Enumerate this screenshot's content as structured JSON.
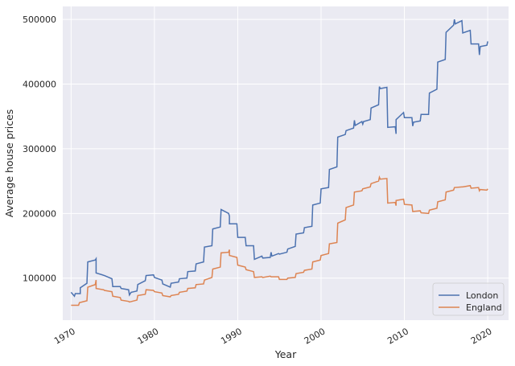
{
  "chart_data": {
    "type": "line",
    "xlabel": "Year",
    "ylabel": "Average house prices",
    "xlim": [
      1969.0,
      2022.5
    ],
    "ylim": [
      35000,
      520000
    ],
    "x_ticks": [
      1970,
      1980,
      1990,
      2000,
      2010,
      2020
    ],
    "y_ticks": [
      100000,
      200000,
      300000,
      400000,
      500000
    ],
    "grid": true,
    "legend_position": "lower-right",
    "series": [
      {
        "name": "London",
        "color": "#4c72b0",
        "points": [
          [
            1970.0,
            78000
          ],
          [
            1970.4,
            72000
          ],
          [
            1970.5,
            76000
          ],
          [
            1971.1,
            76000
          ],
          [
            1971.1,
            85000
          ],
          [
            1971.9,
            92000
          ],
          [
            1972.0,
            125000
          ],
          [
            1972.9,
            128000
          ],
          [
            1973.0,
            130000
          ],
          [
            1973.0,
            108000
          ],
          [
            1974.0,
            104000
          ],
          [
            1974.9,
            99000
          ],
          [
            1975.0,
            87000
          ],
          [
            1975.9,
            87000
          ],
          [
            1976.0,
            84000
          ],
          [
            1976.9,
            82000
          ],
          [
            1977.0,
            74000
          ],
          [
            1977.2,
            78000
          ],
          [
            1977.9,
            80000
          ],
          [
            1978.0,
            90000
          ],
          [
            1978.9,
            96000
          ],
          [
            1979.0,
            104000
          ],
          [
            1979.9,
            105000
          ],
          [
            1980.0,
            101000
          ],
          [
            1980.9,
            97000
          ],
          [
            1981.0,
            91000
          ],
          [
            1981.9,
            86000
          ],
          [
            1982.0,
            92000
          ],
          [
            1982.9,
            94000
          ],
          [
            1983.0,
            99000
          ],
          [
            1983.9,
            100000
          ],
          [
            1984.0,
            110000
          ],
          [
            1984.9,
            111000
          ],
          [
            1985.0,
            122000
          ],
          [
            1985.9,
            125000
          ],
          [
            1986.0,
            148000
          ],
          [
            1986.9,
            150000
          ],
          [
            1987.0,
            176000
          ],
          [
            1987.9,
            179000
          ],
          [
            1988.0,
            206000
          ],
          [
            1988.9,
            200000
          ],
          [
            1989.0,
            196000
          ],
          [
            1989.0,
            184000
          ],
          [
            1989.9,
            184000
          ],
          [
            1990.0,
            163000
          ],
          [
            1990.9,
            163000
          ],
          [
            1991.0,
            150000
          ],
          [
            1991.9,
            150000
          ],
          [
            1992.0,
            129000
          ],
          [
            1992.9,
            134000
          ],
          [
            1993.0,
            131000
          ],
          [
            1993.9,
            132000
          ],
          [
            1994.0,
            140000
          ],
          [
            1994.1,
            134000
          ],
          [
            1994.9,
            138000
          ],
          [
            1995.0,
            137000
          ],
          [
            1995.9,
            140000
          ],
          [
            1996.0,
            145000
          ],
          [
            1996.9,
            149000
          ],
          [
            1997.0,
            168000
          ],
          [
            1997.9,
            170000
          ],
          [
            1998.0,
            178000
          ],
          [
            1998.9,
            180000
          ],
          [
            1999.0,
            213000
          ],
          [
            1999.9,
            216000
          ],
          [
            2000.0,
            238000
          ],
          [
            2000.9,
            240000
          ],
          [
            2001.0,
            268000
          ],
          [
            2001.9,
            272000
          ],
          [
            2002.0,
            318000
          ],
          [
            2002.9,
            322000
          ],
          [
            2003.0,
            328000
          ],
          [
            2003.9,
            332000
          ],
          [
            2004.0,
            344000
          ],
          [
            2004.1,
            336000
          ],
          [
            2004.9,
            342000
          ],
          [
            2005.0,
            338000
          ],
          [
            2005.1,
            342000
          ],
          [
            2005.9,
            345000
          ],
          [
            2006.0,
            363000
          ],
          [
            2006.9,
            368000
          ],
          [
            2007.0,
            396000
          ],
          [
            2007.1,
            393000
          ],
          [
            2007.9,
            395000
          ],
          [
            2008.0,
            333000
          ],
          [
            2008.9,
            334000
          ],
          [
            2009.0,
            323000
          ],
          [
            2009.0,
            345000
          ],
          [
            2009.9,
            356000
          ],
          [
            2010.0,
            348000
          ],
          [
            2010.9,
            348000
          ],
          [
            2011.0,
            335000
          ],
          [
            2011.1,
            341000
          ],
          [
            2011.9,
            343000
          ],
          [
            2012.0,
            353000
          ],
          [
            2012.9,
            353000
          ],
          [
            2013.0,
            386000
          ],
          [
            2013.9,
            392000
          ],
          [
            2014.0,
            434000
          ],
          [
            2014.9,
            438000
          ],
          [
            2015.0,
            480000
          ],
          [
            2015.9,
            491000
          ],
          [
            2016.0,
            500000
          ],
          [
            2016.1,
            493000
          ],
          [
            2016.9,
            498000
          ],
          [
            2017.0,
            479000
          ],
          [
            2017.9,
            483000
          ],
          [
            2018.0,
            462000
          ],
          [
            2018.9,
            462000
          ],
          [
            2019.0,
            445000
          ],
          [
            2019.1,
            458000
          ],
          [
            2019.9,
            460000
          ],
          [
            2020.0,
            466000
          ]
        ]
      },
      {
        "name": "England",
        "color": "#dd8452",
        "points": [
          [
            1970.0,
            58000
          ],
          [
            1970.9,
            58000
          ],
          [
            1971.0,
            62000
          ],
          [
            1971.9,
            65000
          ],
          [
            1972.0,
            86000
          ],
          [
            1972.9,
            90000
          ],
          [
            1973.0,
            97000
          ],
          [
            1973.0,
            84000
          ],
          [
            1973.9,
            82000
          ],
          [
            1974.0,
            81000
          ],
          [
            1974.9,
            79000
          ],
          [
            1975.0,
            72000
          ],
          [
            1975.9,
            70000
          ],
          [
            1976.0,
            66000
          ],
          [
            1976.9,
            64000
          ],
          [
            1977.0,
            63000
          ],
          [
            1977.9,
            66000
          ],
          [
            1978.0,
            73000
          ],
          [
            1978.9,
            75000
          ],
          [
            1979.0,
            82000
          ],
          [
            1979.9,
            81000
          ],
          [
            1980.0,
            79000
          ],
          [
            1980.9,
            77000
          ],
          [
            1981.0,
            73000
          ],
          [
            1981.9,
            71000
          ],
          [
            1982.0,
            73000
          ],
          [
            1982.9,
            75000
          ],
          [
            1983.0,
            78000
          ],
          [
            1983.9,
            80000
          ],
          [
            1984.0,
            84000
          ],
          [
            1984.9,
            85000
          ],
          [
            1985.0,
            90000
          ],
          [
            1985.9,
            91000
          ],
          [
            1986.0,
            97000
          ],
          [
            1986.9,
            101000
          ],
          [
            1987.0,
            114000
          ],
          [
            1987.9,
            117000
          ],
          [
            1988.0,
            139000
          ],
          [
            1988.9,
            140000
          ],
          [
            1989.0,
            144000
          ],
          [
            1989.0,
            135000
          ],
          [
            1989.9,
            132000
          ],
          [
            1990.0,
            120000
          ],
          [
            1990.9,
            117000
          ],
          [
            1991.0,
            113000
          ],
          [
            1991.9,
            110000
          ],
          [
            1992.0,
            101000
          ],
          [
            1992.9,
            102000
          ],
          [
            1993.0,
            101000
          ],
          [
            1993.9,
            103000
          ],
          [
            1994.0,
            102000
          ],
          [
            1994.9,
            102000
          ],
          [
            1995.0,
            98000
          ],
          [
            1995.9,
            98000
          ],
          [
            1996.0,
            100000
          ],
          [
            1996.9,
            101000
          ],
          [
            1997.0,
            107000
          ],
          [
            1997.9,
            109000
          ],
          [
            1998.0,
            112000
          ],
          [
            1998.9,
            114000
          ],
          [
            1999.0,
            125000
          ],
          [
            1999.9,
            128000
          ],
          [
            2000.0,
            135000
          ],
          [
            2000.9,
            138000
          ],
          [
            2001.0,
            153000
          ],
          [
            2001.9,
            155000
          ],
          [
            2002.0,
            185000
          ],
          [
            2002.9,
            190000
          ],
          [
            2003.0,
            209000
          ],
          [
            2003.9,
            213000
          ],
          [
            2004.0,
            233000
          ],
          [
            2004.9,
            235000
          ],
          [
            2005.0,
            238000
          ],
          [
            2005.9,
            241000
          ],
          [
            2006.0,
            246000
          ],
          [
            2006.9,
            250000
          ],
          [
            2007.0,
            256000
          ],
          [
            2007.1,
            253000
          ],
          [
            2007.9,
            254000
          ],
          [
            2008.0,
            216000
          ],
          [
            2008.9,
            217000
          ],
          [
            2009.0,
            212000
          ],
          [
            2009.0,
            220000
          ],
          [
            2009.9,
            222000
          ],
          [
            2010.0,
            214000
          ],
          [
            2010.9,
            213000
          ],
          [
            2011.0,
            203000
          ],
          [
            2011.9,
            204000
          ],
          [
            2012.0,
            201000
          ],
          [
            2012.9,
            200000
          ],
          [
            2013.0,
            205000
          ],
          [
            2013.9,
            208000
          ],
          [
            2014.0,
            218000
          ],
          [
            2014.9,
            221000
          ],
          [
            2015.0,
            233000
          ],
          [
            2015.9,
            236000
          ],
          [
            2016.0,
            240000
          ],
          [
            2016.9,
            241000
          ],
          [
            2017.0,
            241000
          ],
          [
            2017.9,
            243000
          ],
          [
            2018.0,
            239000
          ],
          [
            2018.9,
            240000
          ],
          [
            2019.0,
            235000
          ],
          [
            2019.1,
            237000
          ],
          [
            2019.9,
            236000
          ],
          [
            2020.0,
            238000
          ]
        ]
      }
    ]
  }
}
